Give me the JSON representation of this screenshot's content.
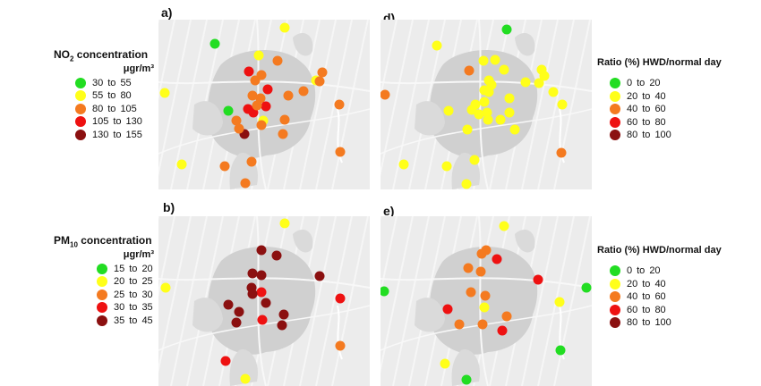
{
  "panels": {
    "a": {
      "label": "a)"
    },
    "b": {
      "label": "b)"
    },
    "d": {
      "label": "d)"
    },
    "e": {
      "label": "e)"
    }
  },
  "legends": {
    "no2": {
      "title_main": "NO",
      "title_sub": "2",
      "title_rest": " concentration",
      "units": "μgr/m³",
      "items": [
        {
          "from": "30",
          "to": "55",
          "color": "#22dd22"
        },
        {
          "from": "55",
          "to": "80",
          "color": "#ffff1a"
        },
        {
          "from": "80",
          "to": "105",
          "color": "#f47a20"
        },
        {
          "from": "105",
          "to": "130",
          "color": "#ee1111"
        },
        {
          "from": "130",
          "to": "155",
          "color": "#8b1010"
        }
      ]
    },
    "pm10": {
      "title_main": "PM",
      "title_sub": "10",
      "title_rest": " concentration",
      "units": "μgr/m³",
      "items": [
        {
          "from": "15",
          "to": "20",
          "color": "#22dd22"
        },
        {
          "from": "20",
          "to": "25",
          "color": "#ffff1a"
        },
        {
          "from": "25",
          "to": "30",
          "color": "#f47a20"
        },
        {
          "from": "30",
          "to": "35",
          "color": "#ee1111"
        },
        {
          "from": "35",
          "to": "45",
          "color": "#8b1010"
        }
      ]
    },
    "ratio_d": {
      "title": "Ratio (%) HWD/normal day",
      "items": [
        {
          "from": "0",
          "to": "20",
          "color": "#22dd22"
        },
        {
          "from": "20",
          "to": "40",
          "color": "#ffff1a"
        },
        {
          "from": "40",
          "to": "60",
          "color": "#f47a20"
        },
        {
          "from": "60",
          "to": "80",
          "color": "#ee1111"
        },
        {
          "from": "80",
          "to": "100",
          "color": "#8b1010"
        }
      ]
    },
    "ratio_e": {
      "title": "Ratio (%) HWD/normal day",
      "items": [
        {
          "from": "0",
          "to": "20",
          "color": "#22dd22"
        },
        {
          "from": "20",
          "to": "40",
          "color": "#ffff1a"
        },
        {
          "from": "40",
          "to": "60",
          "color": "#f47a20"
        },
        {
          "from": "60",
          "to": "80",
          "color": "#ee1111"
        },
        {
          "from": "80",
          "to": "100",
          "color": "#8b1010"
        }
      ]
    }
  },
  "legend_separator": "to"
}
